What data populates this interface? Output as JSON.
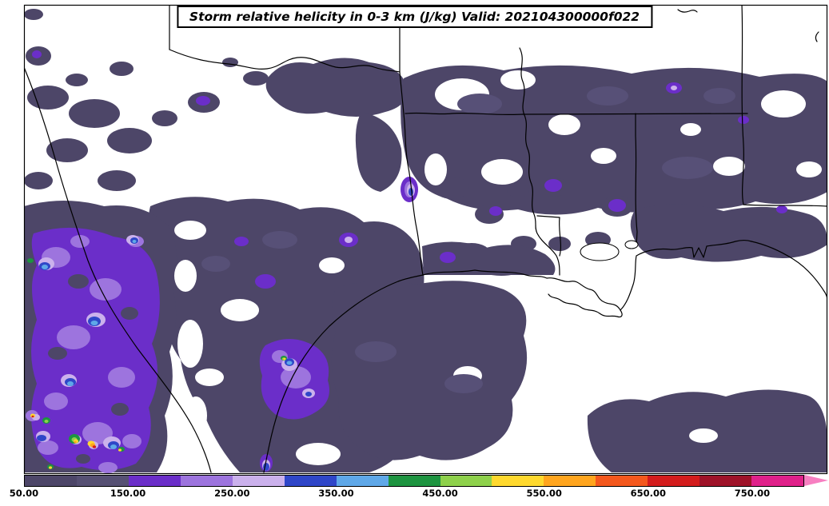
{
  "title": {
    "text": "Storm relative helicity in 0-3 km (J/kg) Valid: 202104300000f022"
  },
  "colorbar": {
    "range_min": 50,
    "range_max": 800,
    "segment_interval": 50,
    "ticks": [
      {
        "value": 50,
        "label": "50.00"
      },
      {
        "value": 150,
        "label": "150.00"
      },
      {
        "value": 250,
        "label": "250.00"
      },
      {
        "value": 350,
        "label": "350.00"
      },
      {
        "value": 450,
        "label": "450.00"
      },
      {
        "value": 550,
        "label": "550.00"
      },
      {
        "value": 650,
        "label": "650.00"
      },
      {
        "value": 750,
        "label": "750.00"
      }
    ],
    "segments": [
      {
        "min": 50,
        "max": 100,
        "color": "#4d4668"
      },
      {
        "min": 100,
        "max": 150,
        "color": "#565073"
      },
      {
        "min": 150,
        "max": 200,
        "color": "#6b2ec9"
      },
      {
        "min": 200,
        "max": 250,
        "color": "#9d74de"
      },
      {
        "min": 250,
        "max": 300,
        "color": "#cbb1ec"
      },
      {
        "min": 300,
        "max": 350,
        "color": "#2f46c8"
      },
      {
        "min": 350,
        "max": 400,
        "color": "#5fa8e8"
      },
      {
        "min": 400,
        "max": 450,
        "color": "#1d9440"
      },
      {
        "min": 450,
        "max": 500,
        "color": "#8ed14b"
      },
      {
        "min": 500,
        "max": 550,
        "color": "#ffd92e"
      },
      {
        "min": 550,
        "max": 600,
        "color": "#ffa51e"
      },
      {
        "min": 600,
        "max": 650,
        "color": "#f4581d"
      },
      {
        "min": 650,
        "max": 700,
        "color": "#d31c1c"
      },
      {
        "min": 700,
        "max": 750,
        "color": "#9e1228"
      },
      {
        "min": 750,
        "max": 800,
        "color": "#e0218a"
      }
    ],
    "arrow_color": "#f77fc1"
  },
  "field_palette": {
    "base_dark_purple": "#4d4668",
    "dark_purple_light": "#575077",
    "violet": "#6b2ec9",
    "medium_purple": "#9d74de",
    "lavender": "#cbb1ec",
    "blue": "#2f46c8",
    "light_blue": "#5fa8e8",
    "green": "#1d9440",
    "light_green": "#8ed14b",
    "yellow": "#ffd92e",
    "orange": "#ffa51e",
    "red": "#d31c1c"
  }
}
